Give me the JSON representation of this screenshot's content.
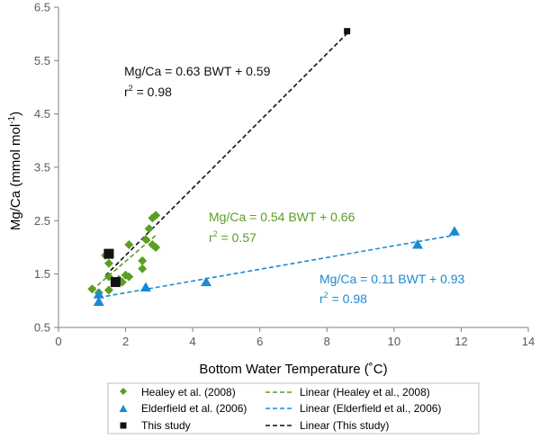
{
  "chart_data": {
    "type": "scatter",
    "xlabel": "Bottom Water Temperature (˚C)",
    "ylabel": "Mg/Ca (mmol mol",
    "ylabel_sup": "-1",
    "ylabel_end": ")",
    "xlim": [
      0,
      14
    ],
    "ylim": [
      0.5,
      6.5
    ],
    "xticks": [
      0,
      2,
      4,
      6,
      8,
      10,
      12,
      14
    ],
    "yticks": [
      0.5,
      1.5,
      2.5,
      3.5,
      4.5,
      5.5,
      6.5
    ],
    "ytick_labels": [
      "0.5",
      "1.5",
      "2.5",
      "3.5",
      "4.5",
      "5.5",
      "6.5"
    ],
    "grid": false,
    "legend_position": "bottom",
    "series": [
      {
        "name": "Healey et al. (2008)",
        "marker": "diamond",
        "color": "#5a9e23",
        "points": [
          [
            1.0,
            1.22
          ],
          [
            1.2,
            1.15
          ],
          [
            1.5,
            1.2
          ],
          [
            1.5,
            1.45
          ],
          [
            1.5,
            1.7
          ],
          [
            1.4,
            1.85
          ],
          [
            1.8,
            1.4
          ],
          [
            1.9,
            1.35
          ],
          [
            2.0,
            1.48
          ],
          [
            2.1,
            2.05
          ],
          [
            2.1,
            1.45
          ],
          [
            2.5,
            1.6
          ],
          [
            2.5,
            1.75
          ],
          [
            2.6,
            2.15
          ],
          [
            2.7,
            2.35
          ],
          [
            2.8,
            2.55
          ],
          [
            2.8,
            2.05
          ],
          [
            2.9,
            2.6
          ],
          [
            2.9,
            2.0
          ]
        ]
      },
      {
        "name": "Elderfield et al. (2006)",
        "marker": "triangle",
        "color": "#1b8ad4",
        "points": [
          [
            1.2,
            1.12
          ],
          [
            1.2,
            0.98
          ],
          [
            2.6,
            1.25
          ],
          [
            4.4,
            1.35
          ],
          [
            10.7,
            2.05
          ],
          [
            11.8,
            2.3
          ]
        ]
      },
      {
        "name": "This study",
        "marker": "square",
        "color": "#111111",
        "points": [
          [
            1.5,
            1.88
          ],
          [
            1.7,
            1.35
          ],
          [
            8.6,
            6.05
          ]
        ]
      }
    ],
    "trendlines": [
      {
        "name": "Linear (Healey et al., 2008)",
        "color": "#5a9e23",
        "slope": 0.54,
        "intercept": 0.66,
        "x_range": [
          1.0,
          2.9
        ]
      },
      {
        "name": "Linear (Elderfield et al., 2006)",
        "color": "#1b8ad4",
        "slope": 0.11,
        "intercept": 0.93,
        "x_range": [
          1.2,
          11.8
        ]
      },
      {
        "name": "Linear (This study)",
        "color": "#111111",
        "slope": 0.63,
        "intercept": 0.59,
        "x_range": [
          1.4,
          8.6
        ]
      }
    ],
    "annotations": [
      {
        "id": "this-study",
        "equation": "Mg/Ca = 0.63 BWT + 0.59",
        "r2_prefix": "r",
        "r2_sup": "2",
        "r2_value": " = 0.98",
        "color": "#111111"
      },
      {
        "id": "healey",
        "equation": "Mg/Ca = 0.54 BWT + 0.66",
        "r2_prefix": "r",
        "r2_sup": "2",
        "r2_value": " = 0.57",
        "color": "#5a9e23"
      },
      {
        "id": "elderfield",
        "equation": "Mg/Ca = 0.11 BWT + 0.93",
        "r2_prefix": "r",
        "r2_sup": "2",
        "r2_value": " = 0.98",
        "color": "#1b8ad4"
      }
    ]
  }
}
